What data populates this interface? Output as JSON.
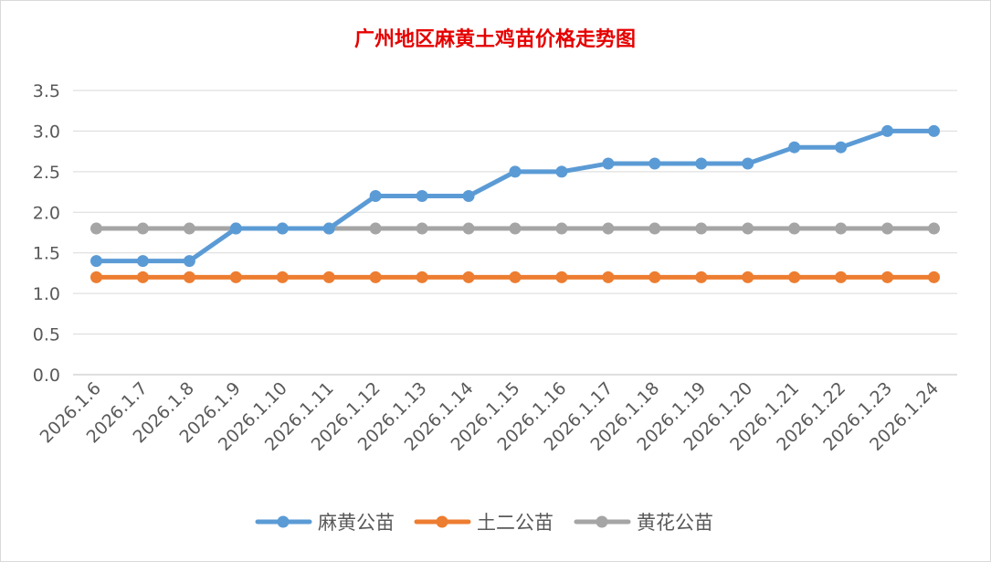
{
  "chart_data": {
    "type": "line",
    "title": "广州地区麻黄土鸡苗价格走势图",
    "xlabel": "",
    "ylabel": "",
    "ylim": [
      0,
      3.5
    ],
    "yticks": [
      "0.0",
      "0.5",
      "1.0",
      "1.5",
      "2.0",
      "2.5",
      "3.0",
      "3.5"
    ],
    "grid": true,
    "legend_position": "bottom",
    "categories": [
      "2026.1.6",
      "2026.1.7",
      "2026.1.8",
      "2026.1.9",
      "2026.1.10",
      "2026.1.11",
      "2026.1.12",
      "2026.1.13",
      "2026.1.14",
      "2026.1.15",
      "2026.1.16",
      "2026.1.17",
      "2026.1.18",
      "2026.1.19",
      "2026.1.20",
      "2026.1.21",
      "2026.1.22",
      "2026.1.23",
      "2026.1.24"
    ],
    "series": [
      {
        "name": "麻黄公苗",
        "color": "#5b9bd5",
        "values": [
          1.4,
          1.4,
          1.4,
          1.8,
          1.8,
          1.8,
          2.2,
          2.2,
          2.2,
          2.5,
          2.5,
          2.6,
          2.6,
          2.6,
          2.6,
          2.8,
          2.8,
          3.0,
          3.0
        ]
      },
      {
        "name": "土二公苗",
        "color": "#ed7d31",
        "values": [
          1.2,
          1.2,
          1.2,
          1.2,
          1.2,
          1.2,
          1.2,
          1.2,
          1.2,
          1.2,
          1.2,
          1.2,
          1.2,
          1.2,
          1.2,
          1.2,
          1.2,
          1.2,
          1.2
        ]
      },
      {
        "name": "黄花公苗",
        "color": "#a5a5a5",
        "values": [
          1.8,
          1.8,
          1.8,
          1.8,
          1.8,
          1.8,
          1.8,
          1.8,
          1.8,
          1.8,
          1.8,
          1.8,
          1.8,
          1.8,
          1.8,
          1.8,
          1.8,
          1.8,
          1.8
        ]
      }
    ]
  }
}
